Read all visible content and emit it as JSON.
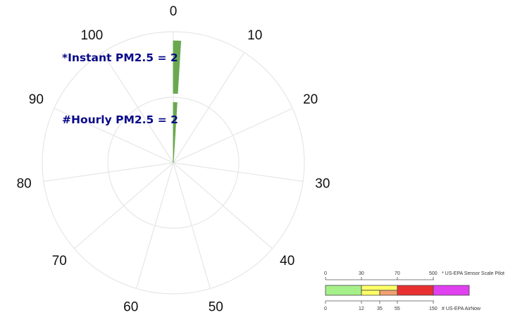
{
  "chart_data": {
    "type": "polar-bar",
    "angular_ticks": [
      "0",
      "10",
      "20",
      "30",
      "40",
      "50",
      "60",
      "70",
      "80",
      "90",
      "100"
    ],
    "series": [
      {
        "label": "*Instant PM2.5 = 2",
        "value": 2,
        "color": "#6aa84f"
      },
      {
        "label": "#Hourly PM2.5 = 2",
        "value": 2,
        "color": "#6aa84f"
      }
    ],
    "grid": true
  },
  "scale_legend": {
    "top_ticks": [
      "0",
      "30",
      "70",
      "500"
    ],
    "top_caption": "* US-EPA Sensor Scale Pilot",
    "bottom_ticks": [
      "0",
      "12",
      "35",
      "55",
      "150"
    ],
    "bottom_caption": "# US-EPA AirNow",
    "colors": [
      "#a6f08a",
      "#ffff66",
      "#f2a070",
      "#e83030",
      "#e040f0"
    ]
  }
}
